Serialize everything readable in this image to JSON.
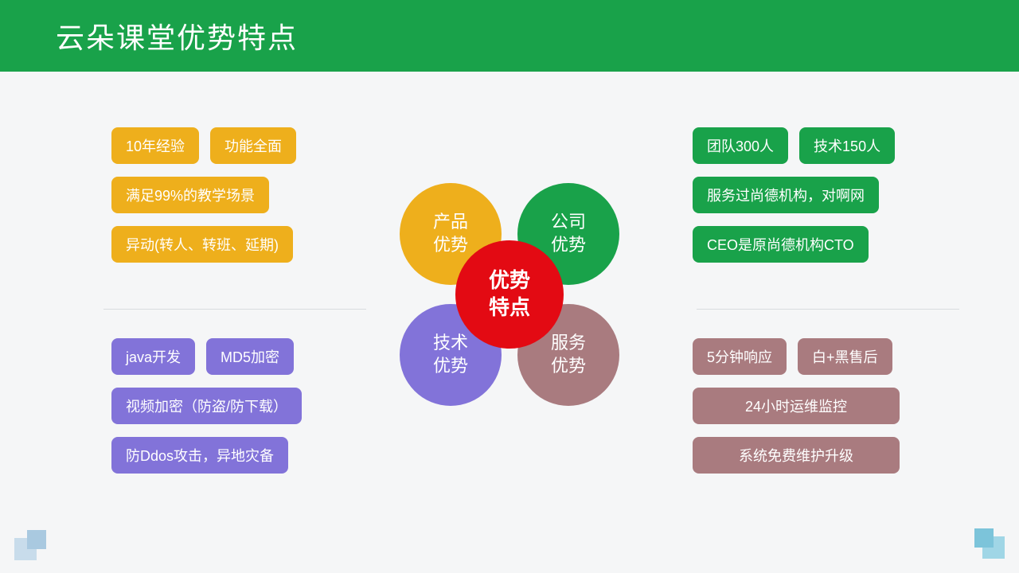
{
  "header": {
    "title": "云朵课堂优势特点",
    "bg": "#19a24a"
  },
  "colors": {
    "product": "#eeaf1c",
    "company": "#19a24a",
    "tech": "#8273d9",
    "service": "#a97b7f",
    "center": "#e30a13"
  },
  "center": {
    "label": "优势\n特点"
  },
  "petals": {
    "tl": "产品\n优势",
    "tr": "公司\n优势",
    "bl": "技术\n优势",
    "br": "服务\n优势"
  },
  "quads": {
    "product": {
      "rows": [
        [
          "10年经验",
          "功能全面"
        ],
        [
          "满足99%的教学场景"
        ],
        [
          "异动(转人、转班、延期)"
        ]
      ]
    },
    "company": {
      "rows": [
        [
          "团队300人",
          "技术150人"
        ],
        [
          "服务过尚德机构，对啊网"
        ],
        [
          "CEO是原尚德机构CTO"
        ]
      ]
    },
    "tech": {
      "rows": [
        [
          "java开发",
          "MD5加密"
        ],
        [
          "视频加密（防盗/防下载）"
        ],
        [
          "防Ddos攻击，异地灾备"
        ]
      ]
    },
    "service": {
      "rows": [
        [
          "5分钟响应",
          "白+黑售后"
        ],
        [
          "24小时运维监控"
        ],
        [
          "系统免费维护升级"
        ]
      ]
    }
  }
}
